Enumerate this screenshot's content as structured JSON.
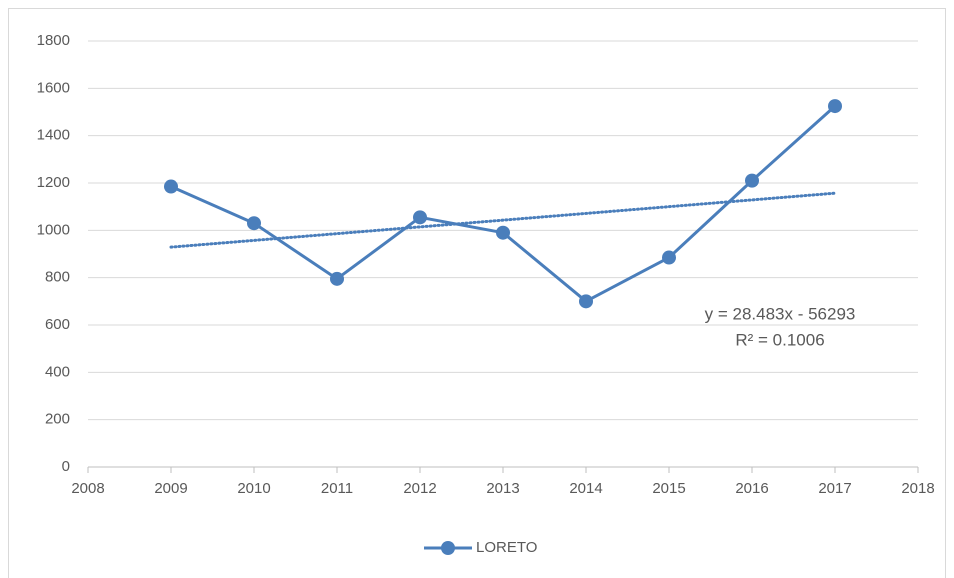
{
  "chart_data": {
    "type": "line",
    "x": [
      2009,
      2010,
      2011,
      2012,
      2013,
      2014,
      2015,
      2016,
      2017
    ],
    "series": [
      {
        "name": "LORETO",
        "color": "#4a7ebb",
        "values": [
          1185,
          1030,
          795,
          1055,
          990,
          700,
          885,
          1210,
          1525
        ]
      }
    ],
    "trend": {
      "x": [
        2009,
        2017
      ],
      "values": [
        929,
        1157
      ],
      "color": "#4a7ebb"
    },
    "annotations": [
      "y = 28.483x - 56293",
      "R² = 0.1006"
    ],
    "xlim": [
      2008,
      2018
    ],
    "xticks": [
      2008,
      2009,
      2010,
      2011,
      2012,
      2013,
      2014,
      2015,
      2016,
      2017,
      2018
    ],
    "ylim": [
      0,
      1800
    ],
    "yticks": [
      0,
      200,
      400,
      600,
      800,
      1000,
      1200,
      1400,
      1600,
      1800
    ],
    "grid": true,
    "legend": "bottom"
  }
}
